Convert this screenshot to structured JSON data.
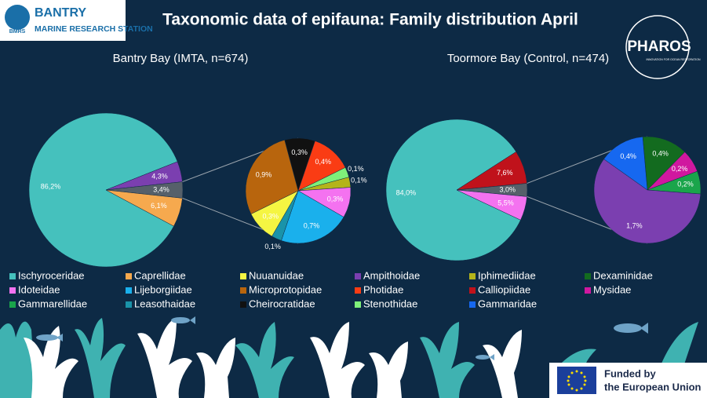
{
  "title": "Taxonomic  data of epifauna: Family distribution April",
  "logo": {
    "name": "BANTRY",
    "subtitle": "MARINE RESEARCH STATION",
    "badge": "BMRS"
  },
  "partner": {
    "name": "PHAROS",
    "tagline": "INNOVATION FOR OCEAN RESTORATION"
  },
  "funding": {
    "line1": "Funded by",
    "line2": "the European Union"
  },
  "chart_data": [
    {
      "type": "pie",
      "title": "Bantry Bay (IMTA, n=674)",
      "main": {
        "categories": [
          "Ischyroceridae",
          "Ampithoidae",
          null,
          "Caprellidae"
        ],
        "values": [
          86.2,
          4.3,
          3.4,
          6.1
        ],
        "value_labels": [
          "86,2%",
          "4,3%",
          "3,4%",
          "6,1%"
        ],
        "colors": [
          "#45c1bd",
          "#7b3fb0",
          "#56606a",
          "#f6a94e"
        ]
      },
      "sub": {
        "categories": [
          "Cheirocratidae",
          "Photidae",
          "Stenothidae",
          "Iphimediidae",
          "Idoteidae",
          "Lijeborgiidae",
          "Leasothaidae",
          "Nuuanuidae",
          "Microprotopidae"
        ],
        "values": [
          0.3,
          0.4,
          0.1,
          0.1,
          0.3,
          0.7,
          0.1,
          0.3,
          0.9
        ],
        "value_labels": [
          "0,3%",
          "0,4%",
          "0,1%",
          "0,1%",
          "0,3%",
          "0,7%",
          "0,1%",
          "0,3%",
          "0,9%"
        ],
        "colors": [
          "#111111",
          "#fa3c14",
          "#7ff07a",
          "#b4b41a",
          "#f472f0",
          "#1ab0ec",
          "#1a93a9",
          "#f5f542",
          "#b8650d"
        ]
      }
    },
    {
      "type": "pie",
      "title": "Toormore Bay (Control, n=474)",
      "main": {
        "categories": [
          "Ischyroceridae",
          "Calliopiidae",
          null,
          "Idoteidae"
        ],
        "values": [
          84.0,
          7.6,
          3.0,
          5.5
        ],
        "value_labels": [
          "84,0%",
          "7,6%",
          "3,0%",
          "5,5%"
        ],
        "colors": [
          "#45c1bd",
          "#c0121b",
          "#56606a",
          "#f472f0"
        ]
      },
      "sub": {
        "categories": [
          "Dexaminidae",
          "Mysidae",
          "Gammarellidae",
          "Ampithoidae",
          "Gammaridae"
        ],
        "values": [
          0.4,
          0.2,
          0.2,
          1.7,
          0.4
        ],
        "value_labels": [
          "0,4%",
          "0,2%",
          "0,2%",
          "1,7%",
          "0,4%"
        ],
        "colors": [
          "#136b1f",
          "#d0189f",
          "#1aa54b",
          "#7b3fb0",
          "#1668f0"
        ]
      }
    }
  ],
  "legend": {
    "names": [
      "Ischyroceridae",
      "Caprellidae",
      "Nuuanuidae",
      "Ampithoidae",
      "Iphimediidae",
      "Dexaminidae",
      "Idoteidae",
      "Lijeborgiidae",
      "Microprotopidae",
      "Photidae",
      "Calliopiidae",
      "Mysidae",
      "Gammarellidae",
      "Leasothaidae",
      "Cheirocratidae",
      "Stenothidae",
      "Gammaridae"
    ],
    "colors": [
      "#45c1bd",
      "#f6a94e",
      "#f5f542",
      "#7b3fb0",
      "#b4b41a",
      "#136b1f",
      "#f472f0",
      "#1ab0ec",
      "#b8650d",
      "#fa3c14",
      "#c0121b",
      "#d0189f",
      "#1aa54b",
      "#1a93a9",
      "#111111",
      "#7ff07a",
      "#1668f0"
    ]
  }
}
